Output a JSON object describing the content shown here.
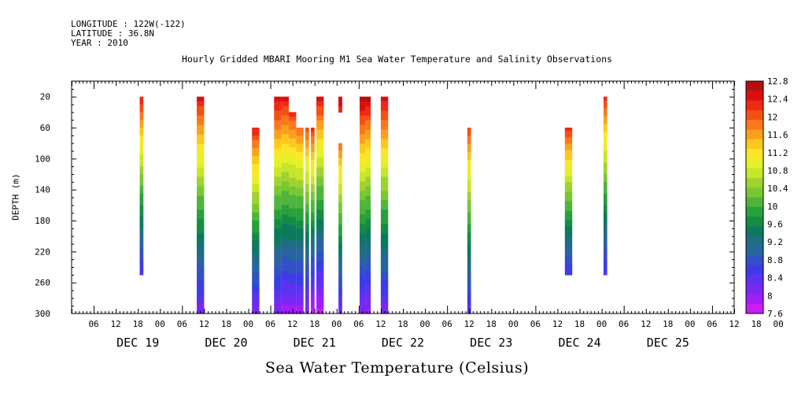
{
  "header": {
    "longitude": "LONGITUDE : 122W(-122)",
    "latitude": "LATITUDE : 36.8N",
    "year": "YEAR : 2010"
  },
  "chart_data": {
    "type": "heatmap",
    "title": "Hourly Gridded MBARI Mooring M1 Sea Water Temperature and Salinity Observations",
    "xlabel": "Sea Water Temperature (Celsius)",
    "ylabel": "DEPTH (m)",
    "x_start": "DEC 18 18:00",
    "x_end": "DEC 26 06:00",
    "x_hours_range": [
      -6,
      174
    ],
    "ylim": [
      300,
      0
    ],
    "y_ticks": [
      20,
      60,
      100,
      140,
      180,
      220,
      260,
      300
    ],
    "hour_tick_labels": [
      "06",
      "12",
      "18",
      "00",
      "06",
      "12",
      "18",
      "00",
      "06",
      "12",
      "18",
      "00",
      "06",
      "12",
      "18",
      "00",
      "06",
      "12",
      "18",
      "00",
      "06",
      "12",
      "18",
      "00",
      "06",
      "12",
      "18",
      "00",
      "06",
      "12",
      "18",
      "00"
    ],
    "day_labels": [
      "DEC 19",
      "DEC 20",
      "DEC 21",
      "DEC 22",
      "DEC 23",
      "DEC 24",
      "DEC 25"
    ],
    "colorbar": {
      "labels": [
        "12.8",
        "12.4",
        "12",
        "11.6",
        "11.2",
        "10.8",
        "10.4",
        "10",
        "9.6",
        "9.2",
        "8.8",
        "8.4",
        "8",
        "7.6"
      ],
      "colors": [
        "#b40f0f",
        "#dc0f0f",
        "#f02814",
        "#f55014",
        "#fa781e",
        "#fba01e",
        "#fbc81e",
        "#fbe628",
        "#e6f028",
        "#c8e628",
        "#a0d232",
        "#78c832",
        "#50b43c",
        "#28a03c",
        "#148c46",
        "#0a7a5a",
        "#1e6e82",
        "#2864a0",
        "#3250c8",
        "#3c3ce6",
        "#5a32f0",
        "#7828f5",
        "#a01ef5",
        "#c81ef5"
      ],
      "range": [
        7.6,
        12.8
      ]
    },
    "columns": [
      {
        "hour": 13,
        "width": 1,
        "top": 20,
        "bottom": 250,
        "surf": 12.4,
        "deep": 8.4
      },
      {
        "hour": 29,
        "width": 2,
        "top": 20,
        "bottom": 300,
        "surf": 12.5,
        "deep": 8.1
      },
      {
        "hour": 44,
        "width": 2,
        "top": 60,
        "bottom": 300,
        "surf": 12.4,
        "deep": 8.1
      },
      {
        "hour": 50,
        "width": 2,
        "top": 20,
        "bottom": 300,
        "surf": 12.6,
        "deep": 8.0
      },
      {
        "hour": 52,
        "width": 2,
        "top": 20,
        "bottom": 300,
        "surf": 12.5,
        "deep": 7.9
      },
      {
        "hour": 54,
        "width": 2,
        "top": 40,
        "bottom": 300,
        "surf": 12.3,
        "deep": 7.9
      },
      {
        "hour": 56,
        "width": 2,
        "top": 60,
        "bottom": 300,
        "surf": 12.0,
        "deep": 7.9
      },
      {
        "hour": 58,
        "width": 1,
        "top": 60,
        "bottom": 300,
        "surf": 12.1,
        "deep": 8.0
      },
      {
        "hour": 59.5,
        "width": 1,
        "top": 60,
        "bottom": 300,
        "surf": 12.3,
        "deep": 7.7
      },
      {
        "hour": 61.5,
        "width": 2,
        "top": 20,
        "bottom": 300,
        "surf": 12.5,
        "deep": 7.7
      },
      {
        "hour": 67,
        "width": 1,
        "top": 20,
        "bottom": 40,
        "surf": 12.5,
        "deep": 12.3
      },
      {
        "hour": 67,
        "width": 1,
        "top": 80,
        "bottom": 300,
        "surf": 12.0,
        "deep": 8.2
      },
      {
        "hour": 73,
        "width": 1.5,
        "top": 20,
        "bottom": 300,
        "surf": 12.8,
        "deep": 8.0
      },
      {
        "hour": 74.5,
        "width": 1.5,
        "top": 20,
        "bottom": 300,
        "surf": 12.7,
        "deep": 7.9
      },
      {
        "hour": 79,
        "width": 2,
        "top": 20,
        "bottom": 300,
        "surf": 12.6,
        "deep": 8.1
      },
      {
        "hour": 102,
        "width": 1,
        "top": 60,
        "bottom": 300,
        "surf": 12.2,
        "deep": 8.3
      },
      {
        "hour": 129,
        "width": 2,
        "top": 60,
        "bottom": 250,
        "surf": 12.3,
        "deep": 8.5
      },
      {
        "hour": 139,
        "width": 1,
        "top": 20,
        "bottom": 250,
        "surf": 12.3,
        "deep": 8.4
      }
    ]
  }
}
